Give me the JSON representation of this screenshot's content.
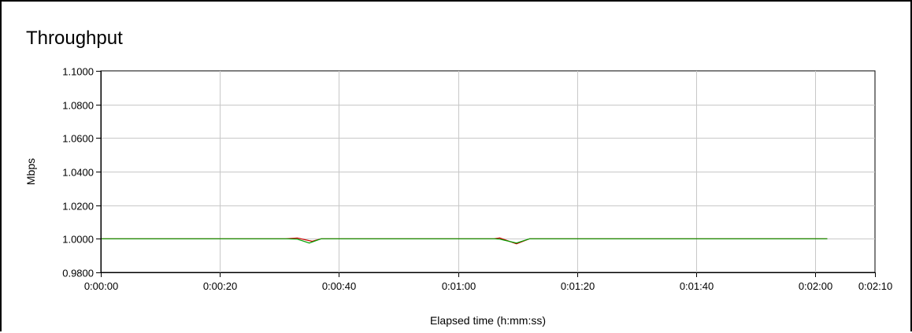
{
  "chart_data": {
    "type": "line",
    "title": "Throughput",
    "xlabel": "Elapsed time (h:mm:ss)",
    "ylabel": "Mbps",
    "xlim": [
      0,
      130
    ],
    "ylim": [
      0.98,
      1.1
    ],
    "x_ticks": [
      0,
      20,
      40,
      60,
      80,
      100,
      120,
      130
    ],
    "x_tick_labels": [
      "0:00:00",
      "0:00:20",
      "0:00:40",
      "0:01:00",
      "0:01:20",
      "0:01:40",
      "0:02:00",
      "0:02:10"
    ],
    "y_ticks": [
      0.98,
      1.0,
      1.02,
      1.04,
      1.06,
      1.08,
      1.1
    ],
    "y_tick_labels": [
      "0.9800",
      "1.0000",
      "1.0200",
      "1.0400",
      "1.0600",
      "1.0800",
      "1.1000"
    ],
    "grid": true,
    "series": [
      {
        "color": "#cc0000",
        "x": [
          0,
          31,
          33,
          35.5,
          37,
          66,
          67,
          69.8,
          72,
          122
        ],
        "y": [
          1.0,
          1.0,
          1.0005,
          0.9985,
          1.0,
          1.0,
          1.0005,
          0.997,
          1.0,
          1.0
        ]
      },
      {
        "color": "#00a000",
        "x": [
          0,
          31,
          33,
          35,
          37,
          66,
          67,
          69.8,
          72,
          122
        ],
        "y": [
          1.0,
          1.0,
          0.9998,
          0.9975,
          1.0,
          1.0,
          0.9998,
          0.9975,
          1.0,
          1.0
        ]
      }
    ]
  }
}
